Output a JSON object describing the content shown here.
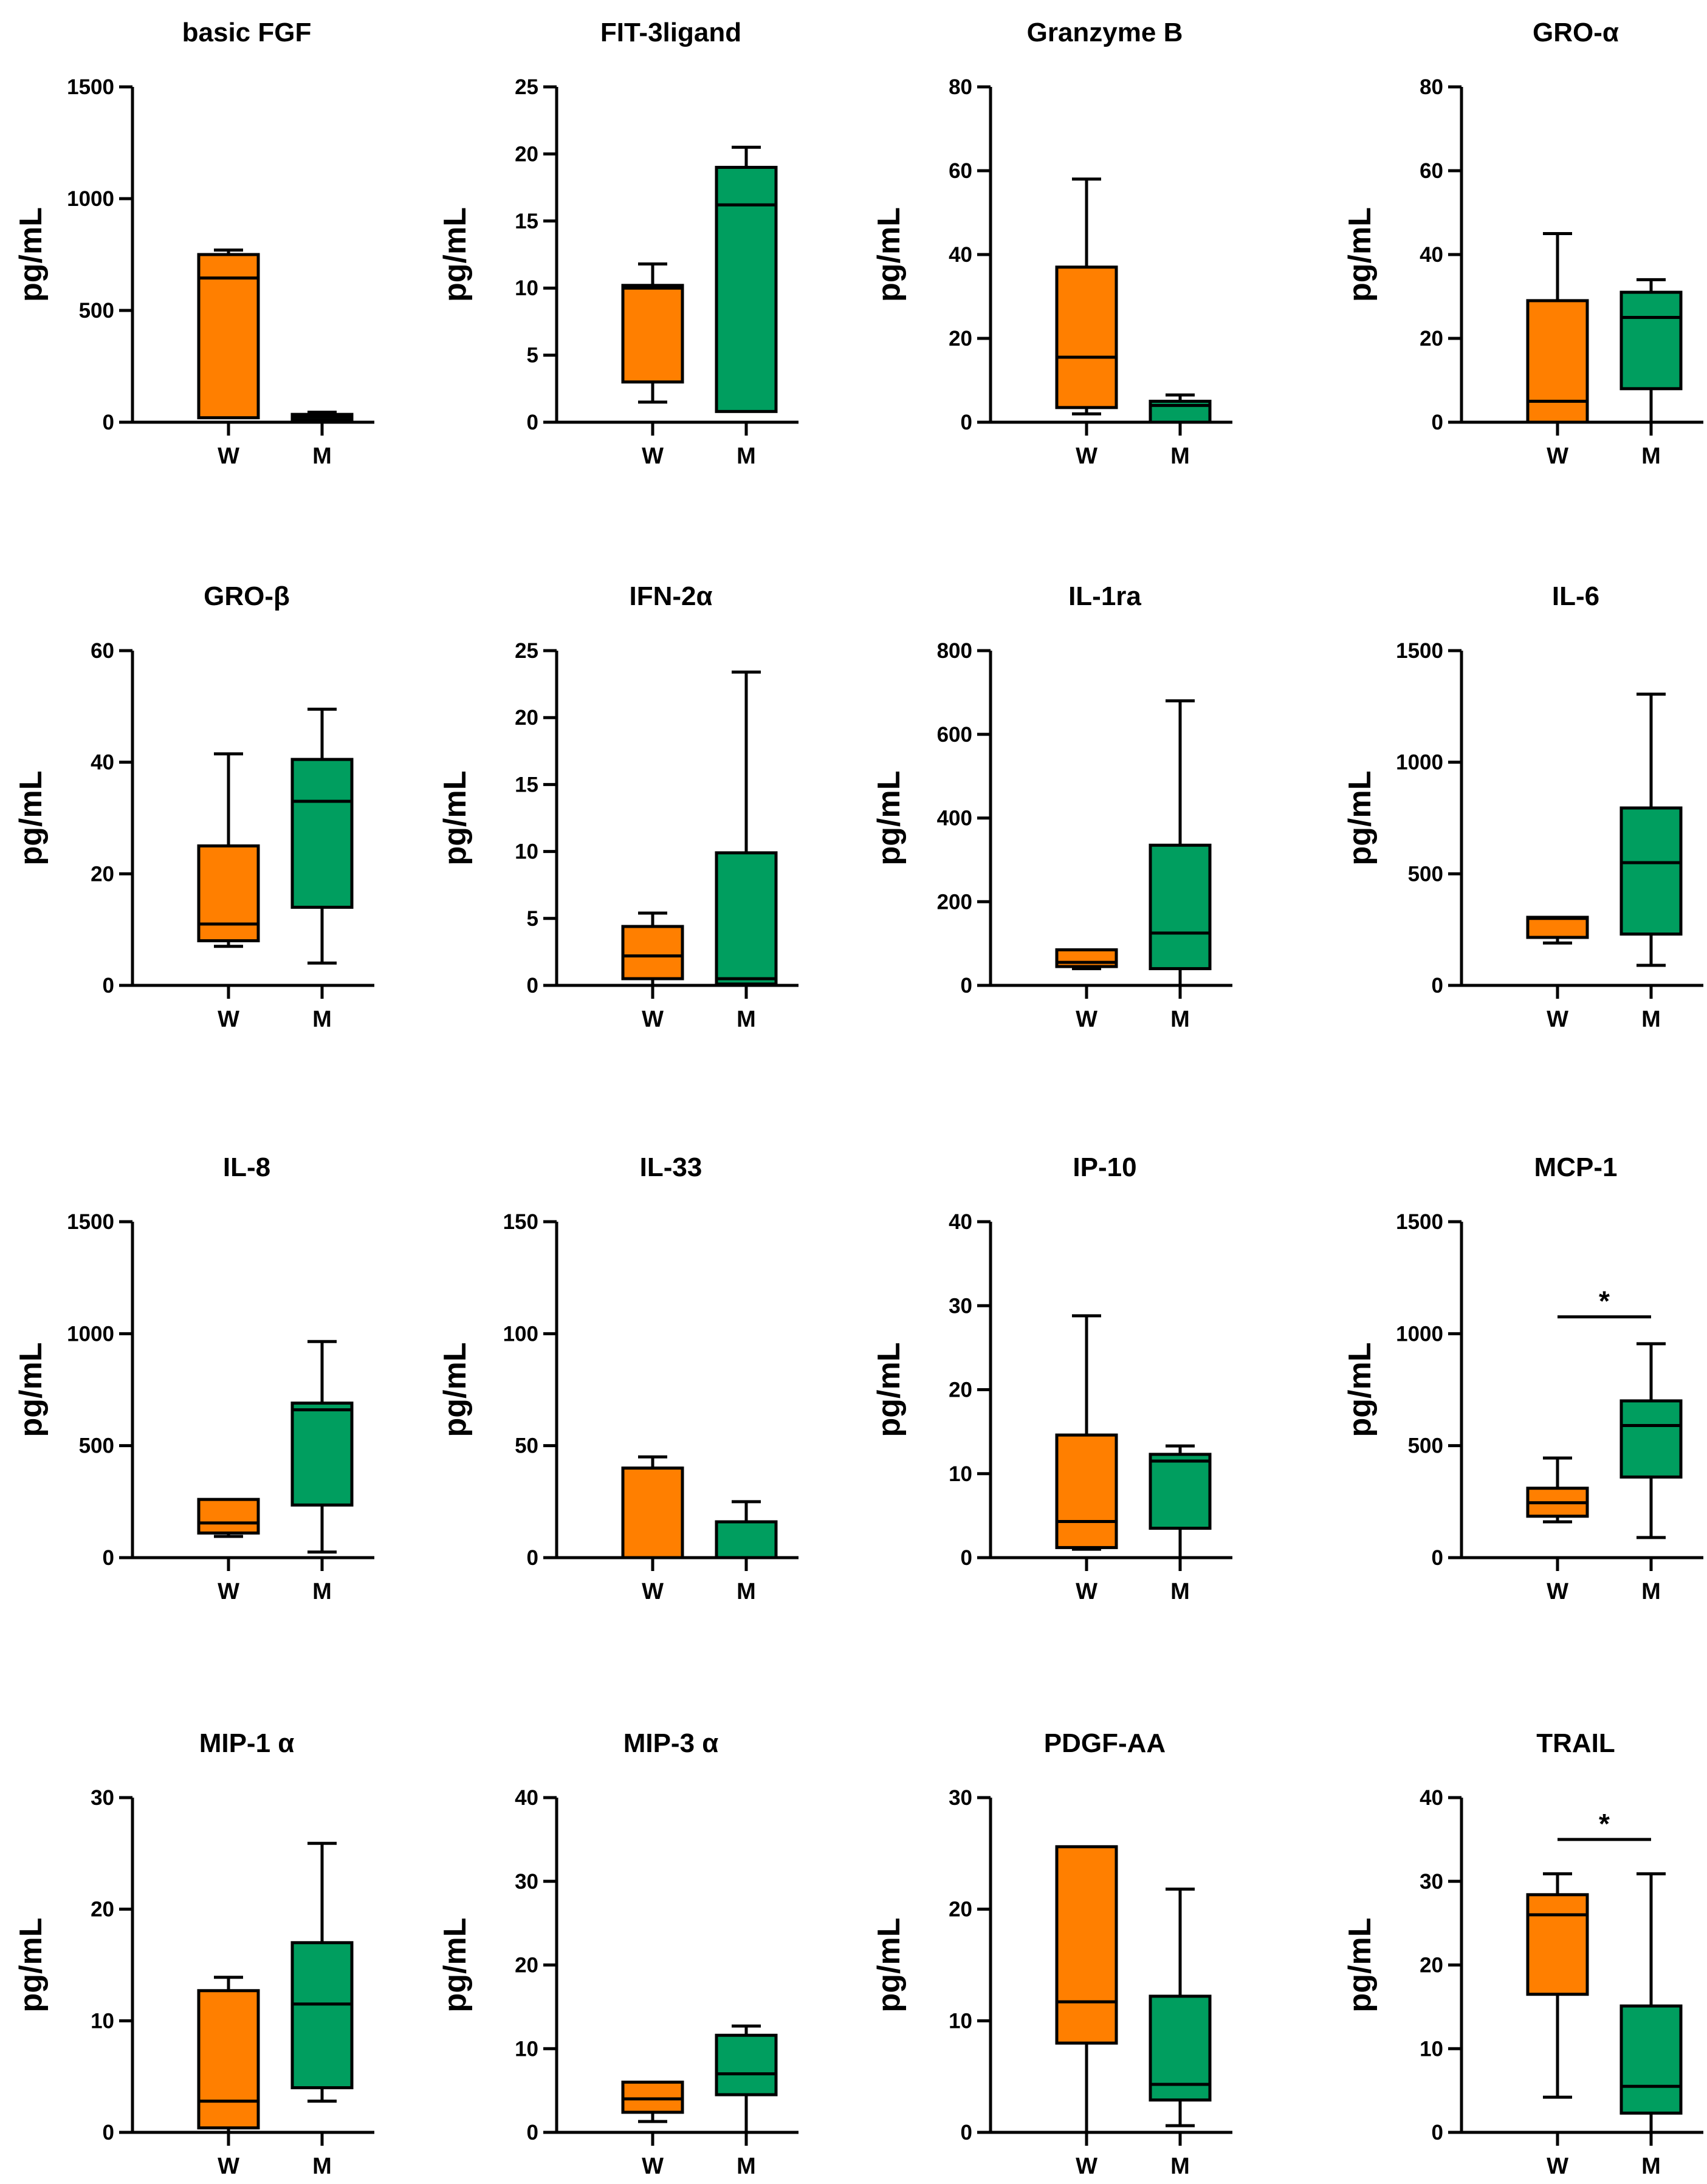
{
  "colors": {
    "W": "#ff7f00",
    "M": "#009e5f"
  },
  "chart_data": [
    {
      "type": "box",
      "title": "basic FGF",
      "ylabel": "pg/mL",
      "ylim": [
        0,
        1500
      ],
      "yticks": [
        "0",
        "500",
        "1000",
        "1500"
      ],
      "categories": [
        "W",
        "M"
      ],
      "boxes": [
        {
          "group": "W",
          "min": 20,
          "q1": 20,
          "median": 645,
          "q3": 750,
          "max": 770
        },
        {
          "group": "M",
          "min": 10,
          "q1": 12,
          "median": 25,
          "q3": 35,
          "max": 45
        }
      ],
      "significance": null
    },
    {
      "type": "box",
      "title": "FIT-3ligand",
      "ylabel": "pg/mL",
      "ylim": [
        0,
        25
      ],
      "yticks": [
        "0",
        "5",
        "10",
        "15",
        "20",
        "25"
      ],
      "categories": [
        "W",
        "M"
      ],
      "boxes": [
        {
          "group": "W",
          "min": 1.5,
          "q1": 3,
          "median": 10,
          "q3": 10.2,
          "max": 11.8
        },
        {
          "group": "M",
          "min": 0.8,
          "q1": 0.8,
          "median": 16.2,
          "q3": 19,
          "max": 20.5
        }
      ],
      "significance": null
    },
    {
      "type": "box",
      "title": "Granzyme B",
      "ylabel": "pg/mL",
      "ylim": [
        0,
        80
      ],
      "yticks": [
        "0",
        "20",
        "40",
        "60",
        "80"
      ],
      "categories": [
        "W",
        "M"
      ],
      "boxes": [
        {
          "group": "W",
          "min": 2,
          "q1": 3.5,
          "median": 15.5,
          "q3": 37,
          "max": 58
        },
        {
          "group": "M",
          "min": 0,
          "q1": 0,
          "median": 4,
          "q3": 5,
          "max": 6.5
        }
      ],
      "significance": null
    },
    {
      "type": "box",
      "title": "GRO-α",
      "ylabel": "pg/mL",
      "ylim": [
        0,
        80
      ],
      "yticks": [
        "0",
        "20",
        "40",
        "60",
        "80"
      ],
      "categories": [
        "W",
        "M"
      ],
      "boxes": [
        {
          "group": "W",
          "min": 0,
          "q1": 0,
          "median": 5,
          "q3": 29,
          "max": 45
        },
        {
          "group": "M",
          "min": 0,
          "q1": 8,
          "median": 25,
          "q3": 31,
          "max": 34
        }
      ],
      "significance": null
    },
    {
      "type": "box",
      "title": "GRO-β",
      "ylabel": "pg/mL",
      "ylim": [
        0,
        60
      ],
      "yticks": [
        "0",
        "20",
        "40",
        "60"
      ],
      "categories": [
        "W",
        "M"
      ],
      "boxes": [
        {
          "group": "W",
          "min": 7,
          "q1": 8,
          "median": 11,
          "q3": 25,
          "max": 41.5
        },
        {
          "group": "M",
          "min": 4,
          "q1": 14,
          "median": 33,
          "q3": 40.5,
          "max": 49.5
        }
      ],
      "significance": null
    },
    {
      "type": "box",
      "title": "IFN-2α",
      "ylabel": "pg/mL",
      "ylim": [
        0,
        25
      ],
      "yticks": [
        "0",
        "5",
        "10",
        "15",
        "20",
        "25"
      ],
      "categories": [
        "W",
        "M"
      ],
      "boxes": [
        {
          "group": "W",
          "min": 0,
          "q1": 0.5,
          "median": 2.2,
          "q3": 4.4,
          "max": 5.4
        },
        {
          "group": "M",
          "min": 0,
          "q1": 0.1,
          "median": 0.5,
          "q3": 9.9,
          "max": 23.4
        }
      ],
      "significance": null
    },
    {
      "type": "box",
      "title": "IL-1ra",
      "ylabel": "pg/mL",
      "ylim": [
        0,
        800
      ],
      "yticks": [
        "0",
        "200",
        "400",
        "600",
        "800"
      ],
      "categories": [
        "W",
        "M"
      ],
      "boxes": [
        {
          "group": "W",
          "min": 40,
          "q1": 45,
          "median": 55,
          "q3": 85,
          "max": 85
        },
        {
          "group": "M",
          "min": 0,
          "q1": 40,
          "median": 125,
          "q3": 335,
          "max": 680
        }
      ],
      "significance": null
    },
    {
      "type": "box",
      "title": "IL-6",
      "ylabel": "pg/mL",
      "ylim": [
        0,
        1500
      ],
      "yticks": [
        "0",
        "500",
        "1000",
        "1500"
      ],
      "categories": [
        "W",
        "M"
      ],
      "boxes": [
        {
          "group": "W",
          "min": 190,
          "q1": 215,
          "median": 300,
          "q3": 305,
          "max": 305
        },
        {
          "group": "M",
          "min": 90,
          "q1": 230,
          "median": 550,
          "q3": 795,
          "max": 1305
        }
      ],
      "significance": null
    },
    {
      "type": "box",
      "title": "IL-8",
      "ylabel": "pg/mL",
      "ylim": [
        0,
        1500
      ],
      "yticks": [
        "0",
        "500",
        "1000",
        "1500"
      ],
      "categories": [
        "W",
        "M"
      ],
      "boxes": [
        {
          "group": "W",
          "min": 95,
          "q1": 110,
          "median": 155,
          "q3": 260,
          "max": 260
        },
        {
          "group": "M",
          "min": 25,
          "q1": 235,
          "median": 660,
          "q3": 690,
          "max": 965
        }
      ],
      "significance": null
    },
    {
      "type": "box",
      "title": "IL-33",
      "ylabel": "pg/mL",
      "ylim": [
        0,
        150
      ],
      "yticks": [
        "0",
        "50",
        "100",
        "150"
      ],
      "categories": [
        "W",
        "M"
      ],
      "boxes": [
        {
          "group": "W",
          "min": 0,
          "q1": 0,
          "median": 40,
          "q3": 40,
          "max": 45
        },
        {
          "group": "M",
          "min": 0,
          "q1": 0,
          "median": 16,
          "q3": 16,
          "max": 25
        }
      ],
      "significance": null
    },
    {
      "type": "box",
      "title": "IP-10",
      "ylabel": "pg/mL",
      "ylim": [
        0,
        40
      ],
      "yticks": [
        "0",
        "10",
        "20",
        "30",
        "40"
      ],
      "categories": [
        "W",
        "M"
      ],
      "boxes": [
        {
          "group": "W",
          "min": 1,
          "q1": 1.2,
          "median": 4.3,
          "q3": 14.6,
          "max": 28.8
        },
        {
          "group": "M",
          "min": 0,
          "q1": 3.5,
          "median": 11.5,
          "q3": 12.3,
          "max": 13.3
        }
      ],
      "significance": null
    },
    {
      "type": "box",
      "title": "MCP-1",
      "ylabel": "pg/mL",
      "ylim": [
        0,
        1500
      ],
      "yticks": [
        "0",
        "500",
        "1000",
        "1500"
      ],
      "categories": [
        "W",
        "M"
      ],
      "boxes": [
        {
          "group": "W",
          "min": 160,
          "q1": 185,
          "median": 245,
          "q3": 310,
          "max": 445
        },
        {
          "group": "M",
          "min": 90,
          "q1": 360,
          "median": 590,
          "q3": 700,
          "max": 955
        }
      ],
      "significance": {
        "label": "*",
        "between": [
          "W",
          "M"
        ],
        "bracket_value": 1075
      }
    },
    {
      "type": "box",
      "title": "MIP-1 α",
      "ylabel": "pg/mL",
      "ylim": [
        0,
        30
      ],
      "yticks": [
        "0",
        "10",
        "20",
        "30"
      ],
      "categories": [
        "W",
        "M"
      ],
      "boxes": [
        {
          "group": "W",
          "min": 0,
          "q1": 0.4,
          "median": 2.8,
          "q3": 12.7,
          "max": 13.9
        },
        {
          "group": "M",
          "min": 2.8,
          "q1": 4,
          "median": 11.5,
          "q3": 17,
          "max": 25.9
        }
      ],
      "significance": null
    },
    {
      "type": "box",
      "title": "MIP-3 α",
      "ylabel": "pg/mL",
      "ylim": [
        0,
        40
      ],
      "yticks": [
        "0",
        "10",
        "20",
        "30",
        "40"
      ],
      "categories": [
        "W",
        "M"
      ],
      "boxes": [
        {
          "group": "W",
          "min": 1.3,
          "q1": 2.4,
          "median": 4,
          "q3": 6,
          "max": 6
        },
        {
          "group": "M",
          "min": 0,
          "q1": 4.5,
          "median": 7,
          "q3": 11.6,
          "max": 12.7
        }
      ],
      "significance": null
    },
    {
      "type": "box",
      "title": "PDGF-AA",
      "ylabel": "pg/mL",
      "ylim": [
        0,
        30
      ],
      "yticks": [
        "0",
        "10",
        "20",
        "30"
      ],
      "categories": [
        "W",
        "M"
      ],
      "boxes": [
        {
          "group": "W",
          "min": 0,
          "q1": 8,
          "median": 11.7,
          "q3": 25.6,
          "max": 25.6
        },
        {
          "group": "M",
          "min": 0.6,
          "q1": 2.9,
          "median": 4.3,
          "q3": 12.2,
          "max": 21.8
        }
      ],
      "significance": null
    },
    {
      "type": "box",
      "title": "TRAIL",
      "ylabel": "pg/mL",
      "ylim": [
        0,
        40
      ],
      "yticks": [
        "0",
        "10",
        "20",
        "30",
        "40"
      ],
      "categories": [
        "W",
        "M"
      ],
      "boxes": [
        {
          "group": "W",
          "min": 4.2,
          "q1": 16.5,
          "median": 26,
          "q3": 28.4,
          "max": 30.9
        },
        {
          "group": "M",
          "min": 0,
          "q1": 2.3,
          "median": 5.5,
          "q3": 15.1,
          "max": 30.9
        }
      ],
      "significance": {
        "label": "*",
        "between": [
          "W",
          "M"
        ],
        "bracket_value": 35
      }
    }
  ]
}
